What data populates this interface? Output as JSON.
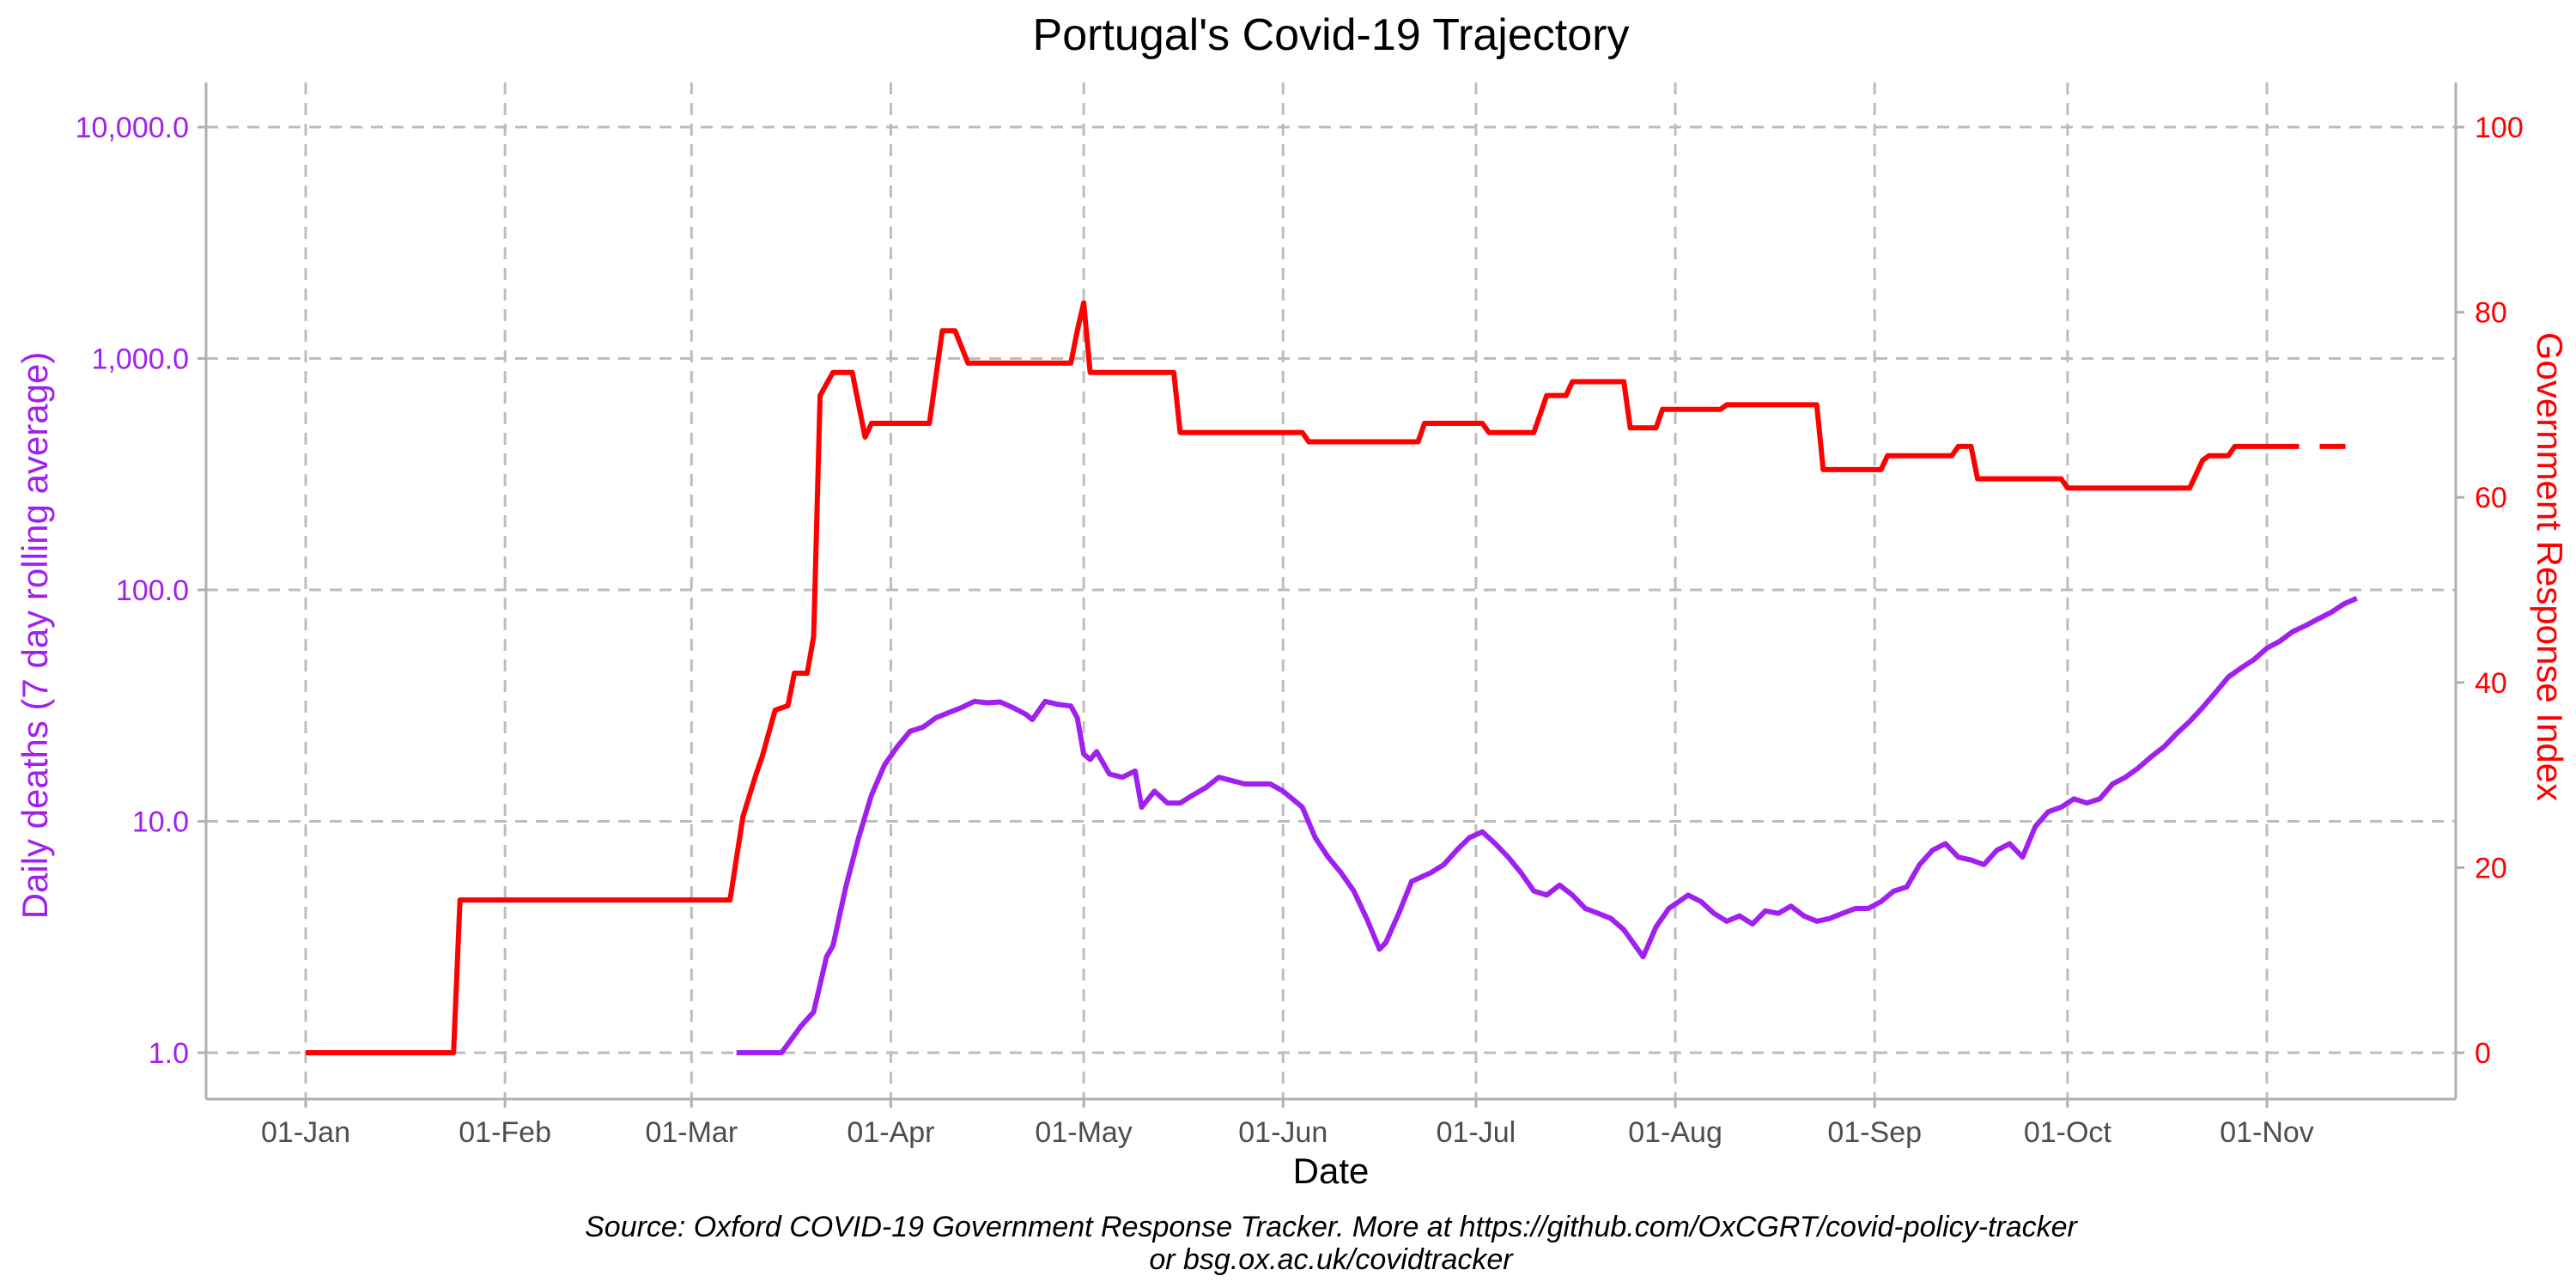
{
  "chart_data": {
    "type": "line",
    "title": "Portugal's Covid-19 Trajectory",
    "xlabel": "Date",
    "ylabel_left": "Daily deaths (7 day rolling average)",
    "ylabel_right": "Government Response Index",
    "y_left_scale": "log",
    "y_left_ticks": [
      "1.0",
      "10.0",
      "100.0",
      "1,000.0",
      "10,000.0"
    ],
    "y_left_values": [
      1,
      10,
      100,
      1000,
      10000
    ],
    "y_right_ticks": [
      "0",
      "20",
      "40",
      "60",
      "80",
      "100"
    ],
    "y_right_values": [
      0,
      20,
      40,
      60,
      80,
      100
    ],
    "x_ticks": [
      {
        "date": "2020-01-01",
        "label": "01-Jan"
      },
      {
        "date": "2020-02-01",
        "label": "01-Feb"
      },
      {
        "date": "2020-03-01",
        "label": "01-Mar"
      },
      {
        "date": "2020-04-01",
        "label": "01-Apr"
      },
      {
        "date": "2020-05-01",
        "label": "01-May"
      },
      {
        "date": "2020-06-01",
        "label": "01-Jun"
      },
      {
        "date": "2020-07-01",
        "label": "01-Jul"
      },
      {
        "date": "2020-08-01",
        "label": "01-Aug"
      },
      {
        "date": "2020-09-01",
        "label": "01-Sep"
      },
      {
        "date": "2020-10-01",
        "label": "01-Oct"
      },
      {
        "date": "2020-11-01",
        "label": "01-Nov"
      }
    ],
    "grid": "dashed",
    "colors": {
      "deaths": "#a020f0",
      "response": "#ff0000",
      "grid": "#bdbdbd",
      "axis": "#b0b0b0"
    },
    "series": [
      {
        "axis": "left",
        "color": "#a020f0",
        "points": [
          [
            "2020-03-08",
            1.0
          ],
          [
            "2020-03-15",
            1.0
          ],
          [
            "2020-03-18",
            1.3
          ],
          [
            "2020-03-20",
            1.5
          ],
          [
            "2020-03-22",
            2.6
          ],
          [
            "2020-03-23",
            2.9
          ],
          [
            "2020-03-25",
            5.2
          ],
          [
            "2020-03-27",
            8.5
          ],
          [
            "2020-03-29",
            13.0
          ],
          [
            "2020-03-31",
            17.5
          ],
          [
            "2020-04-02",
            21.0
          ],
          [
            "2020-04-04",
            24.5
          ],
          [
            "2020-04-06",
            25.5
          ],
          [
            "2020-04-08",
            28.0
          ],
          [
            "2020-04-10",
            29.5
          ],
          [
            "2020-04-12",
            31.0
          ],
          [
            "2020-04-14",
            33.0
          ],
          [
            "2020-04-16",
            32.5
          ],
          [
            "2020-04-18",
            32.8
          ],
          [
            "2020-04-20",
            31.0
          ],
          [
            "2020-04-22",
            29.0
          ],
          [
            "2020-04-23",
            27.5
          ],
          [
            "2020-04-25",
            33.0
          ],
          [
            "2020-04-27",
            32.0
          ],
          [
            "2020-04-29",
            31.5
          ],
          [
            "2020-04-30",
            28.0
          ],
          [
            "2020-05-01",
            19.5
          ],
          [
            "2020-05-02",
            18.5
          ],
          [
            "2020-05-03",
            20.0
          ],
          [
            "2020-05-05",
            16.0
          ],
          [
            "2020-05-07",
            15.5
          ],
          [
            "2020-05-09",
            16.5
          ],
          [
            "2020-05-10",
            11.5
          ],
          [
            "2020-05-12",
            13.5
          ],
          [
            "2020-05-14",
            12.0
          ],
          [
            "2020-05-16",
            12.0
          ],
          [
            "2020-05-18",
            13.0
          ],
          [
            "2020-05-20",
            14.0
          ],
          [
            "2020-05-22",
            15.5
          ],
          [
            "2020-05-24",
            15.0
          ],
          [
            "2020-05-26",
            14.5
          ],
          [
            "2020-05-28",
            14.5
          ],
          [
            "2020-05-30",
            14.5
          ],
          [
            "2020-06-01",
            13.5
          ],
          [
            "2020-06-04",
            11.5
          ],
          [
            "2020-06-06",
            8.5
          ],
          [
            "2020-06-08",
            7.0
          ],
          [
            "2020-06-10",
            6.0
          ],
          [
            "2020-06-12",
            5.0
          ],
          [
            "2020-06-14",
            3.8
          ],
          [
            "2020-06-16",
            2.8
          ],
          [
            "2020-06-17",
            3.0
          ],
          [
            "2020-06-19",
            4.0
          ],
          [
            "2020-06-21",
            5.5
          ],
          [
            "2020-06-24",
            6.0
          ],
          [
            "2020-06-26",
            6.5
          ],
          [
            "2020-06-28",
            7.5
          ],
          [
            "2020-06-30",
            8.5
          ],
          [
            "2020-07-02",
            9.0
          ],
          [
            "2020-07-04",
            8.0
          ],
          [
            "2020-07-06",
            7.0
          ],
          [
            "2020-07-08",
            6.0
          ],
          [
            "2020-07-10",
            5.0
          ],
          [
            "2020-07-12",
            4.8
          ],
          [
            "2020-07-14",
            5.3
          ],
          [
            "2020-07-16",
            4.8
          ],
          [
            "2020-07-18",
            4.2
          ],
          [
            "2020-07-20",
            4.0
          ],
          [
            "2020-07-22",
            3.8
          ],
          [
            "2020-07-24",
            3.4
          ],
          [
            "2020-07-27",
            2.6
          ],
          [
            "2020-07-29",
            3.5
          ],
          [
            "2020-07-31",
            4.2
          ],
          [
            "2020-08-03",
            4.8
          ],
          [
            "2020-08-05",
            4.5
          ],
          [
            "2020-08-07",
            4.0
          ],
          [
            "2020-08-09",
            3.7
          ],
          [
            "2020-08-11",
            3.9
          ],
          [
            "2020-08-13",
            3.6
          ],
          [
            "2020-08-15",
            4.1
          ],
          [
            "2020-08-17",
            4.0
          ],
          [
            "2020-08-19",
            4.3
          ],
          [
            "2020-08-21",
            3.9
          ],
          [
            "2020-08-23",
            3.7
          ],
          [
            "2020-08-25",
            3.8
          ],
          [
            "2020-08-27",
            4.0
          ],
          [
            "2020-08-29",
            4.2
          ],
          [
            "2020-08-31",
            4.2
          ],
          [
            "2020-09-02",
            4.5
          ],
          [
            "2020-09-04",
            5.0
          ],
          [
            "2020-09-06",
            5.2
          ],
          [
            "2020-09-08",
            6.5
          ],
          [
            "2020-09-10",
            7.5
          ],
          [
            "2020-09-12",
            8.0
          ],
          [
            "2020-09-14",
            7.0
          ],
          [
            "2020-09-16",
            6.8
          ],
          [
            "2020-09-18",
            6.5
          ],
          [
            "2020-09-20",
            7.5
          ],
          [
            "2020-09-22",
            8.0
          ],
          [
            "2020-09-24",
            7.0
          ],
          [
            "2020-09-26",
            9.5
          ],
          [
            "2020-09-28",
            11.0
          ],
          [
            "2020-09-30",
            11.5
          ],
          [
            "2020-10-02",
            12.5
          ],
          [
            "2020-10-04",
            12.0
          ],
          [
            "2020-10-06",
            12.5
          ],
          [
            "2020-10-08",
            14.5
          ],
          [
            "2020-10-10",
            15.5
          ],
          [
            "2020-10-12",
            17.0
          ],
          [
            "2020-10-14",
            19.0
          ],
          [
            "2020-10-16",
            21.0
          ],
          [
            "2020-10-18",
            24.0
          ],
          [
            "2020-10-20",
            27.0
          ],
          [
            "2020-10-22",
            31.0
          ],
          [
            "2020-10-24",
            36.0
          ],
          [
            "2020-10-26",
            42.0
          ],
          [
            "2020-10-28",
            46.0
          ],
          [
            "2020-10-30",
            50.0
          ],
          [
            "2020-11-01",
            56.0
          ],
          [
            "2020-11-03",
            60.0
          ],
          [
            "2020-11-05",
            66.0
          ],
          [
            "2020-11-07",
            70.0
          ],
          [
            "2020-11-09",
            75.0
          ],
          [
            "2020-11-11",
            80.0
          ],
          [
            "2020-11-13",
            87.0
          ],
          [
            "2020-11-15",
            92.0
          ]
        ]
      },
      {
        "axis": "right",
        "color": "#ff0000",
        "points": [
          [
            "2020-01-01",
            0
          ],
          [
            "2020-01-24",
            0
          ],
          [
            "2020-01-25",
            16.5
          ],
          [
            "2020-03-07",
            16.5
          ],
          [
            "2020-03-09",
            25.5
          ],
          [
            "2020-03-11",
            30
          ],
          [
            "2020-03-12",
            32
          ],
          [
            "2020-03-14",
            37
          ],
          [
            "2020-03-16",
            37.5
          ],
          [
            "2020-03-17",
            41
          ],
          [
            "2020-03-19",
            41
          ],
          [
            "2020-03-20",
            45
          ],
          [
            "2020-03-21",
            71
          ],
          [
            "2020-03-23",
            73.5
          ],
          [
            "2020-03-26",
            73.5
          ],
          [
            "2020-03-28",
            66.5
          ],
          [
            "2020-03-29",
            68
          ],
          [
            "2020-04-07",
            68
          ],
          [
            "2020-04-09",
            78
          ],
          [
            "2020-04-11",
            78
          ],
          [
            "2020-04-13",
            74.5
          ],
          [
            "2020-04-29",
            74.5
          ],
          [
            "2020-04-30",
            78
          ],
          [
            "2020-05-01",
            81
          ],
          [
            "2020-05-02",
            73.5
          ],
          [
            "2020-05-15",
            73.5
          ],
          [
            "2020-05-16",
            67
          ],
          [
            "2020-06-04",
            67
          ],
          [
            "2020-06-05",
            66
          ],
          [
            "2020-06-22",
            66
          ],
          [
            "2020-06-23",
            68
          ],
          [
            "2020-07-02",
            68
          ],
          [
            "2020-07-03",
            67
          ],
          [
            "2020-07-10",
            67
          ],
          [
            "2020-07-12",
            71
          ],
          [
            "2020-07-15",
            71
          ],
          [
            "2020-07-16",
            72.5
          ],
          [
            "2020-07-24",
            72.5
          ],
          [
            "2020-07-25",
            67.5
          ],
          [
            "2020-07-29",
            67.5
          ],
          [
            "2020-07-30",
            69.5
          ],
          [
            "2020-08-08",
            69.5
          ],
          [
            "2020-08-09",
            70
          ],
          [
            "2020-08-23",
            70
          ],
          [
            "2020-08-24",
            63
          ],
          [
            "2020-09-02",
            63
          ],
          [
            "2020-09-03",
            64.5
          ],
          [
            "2020-09-13",
            64.5
          ],
          [
            "2020-09-14",
            65.5
          ],
          [
            "2020-09-16",
            65.5
          ],
          [
            "2020-09-17",
            62
          ],
          [
            "2020-09-30",
            62
          ],
          [
            "2020-10-01",
            61
          ],
          [
            "2020-10-20",
            61
          ],
          [
            "2020-10-22",
            64
          ],
          [
            "2020-10-23",
            64.5
          ],
          [
            "2020-10-26",
            64.5
          ],
          [
            "2020-10-27",
            65.5
          ],
          [
            "2020-11-02",
            65.5
          ]
        ],
        "dashed_extension": [
          [
            "2020-11-02",
            65.5
          ],
          [
            "2020-11-15",
            65.5
          ]
        ]
      }
    ],
    "source_lines": [
      "Source: Oxford COVID-19 Government Response Tracker. More at https://github.com/OxCGRT/covid-policy-tracker",
      "or bsg.ox.ac.uk/covidtracker"
    ]
  }
}
